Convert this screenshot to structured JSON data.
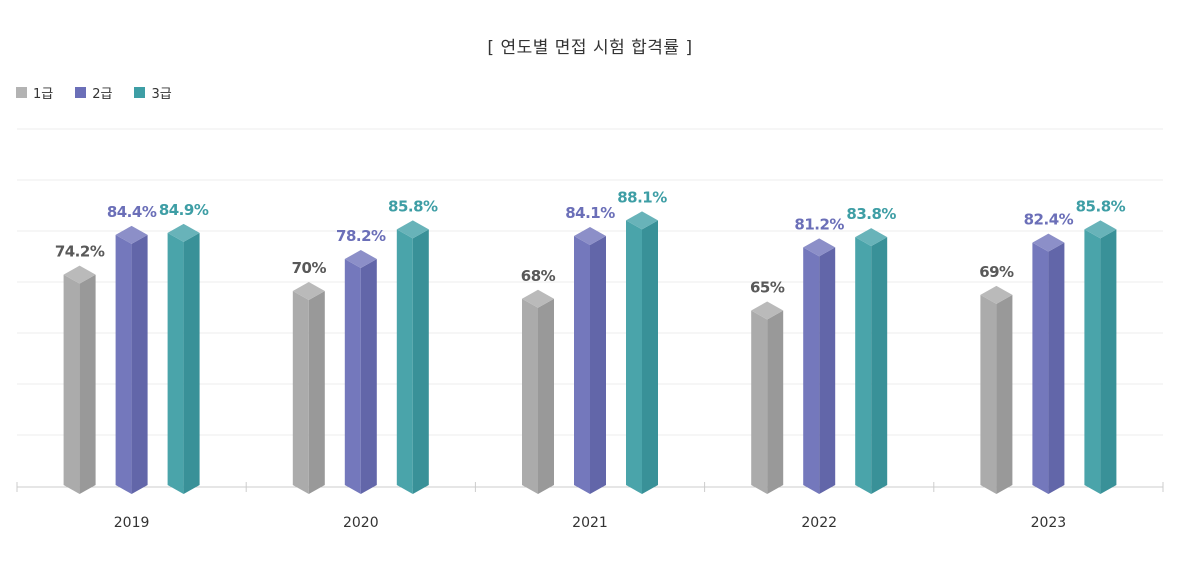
{
  "chart_data": {
    "type": "bar",
    "title": "[ 연도별 면접 시험 합격률 ]",
    "categories": [
      "2019",
      "2020",
      "2021",
      "2022",
      "2023"
    ],
    "series": [
      {
        "name": "1급",
        "values": [
          74.2,
          70,
          68,
          65,
          69
        ],
        "labels": [
          "74.2%",
          "70%",
          "68%",
          "65%",
          "69%"
        ],
        "color": "#a6a6a6",
        "label_color": "#595959"
      },
      {
        "name": "2급",
        "values": [
          84.4,
          78.2,
          84.1,
          81.2,
          82.4
        ],
        "labels": [
          "84.4%",
          "78.2%",
          "84.1%",
          "81.2%",
          "82.4%"
        ],
        "color": "#6b6fb8",
        "label_color": "#6b6fb8"
      },
      {
        "name": "3급",
        "values": [
          84.9,
          85.8,
          88.1,
          83.8,
          85.8
        ],
        "labels": [
          "84.9%",
          "85.8%",
          "88.1%",
          "83.8%",
          "85.8%"
        ],
        "color": "#3e9ea5",
        "label_color": "#3e9ea5"
      }
    ],
    "legend_position": "top-left",
    "grid": true
  }
}
